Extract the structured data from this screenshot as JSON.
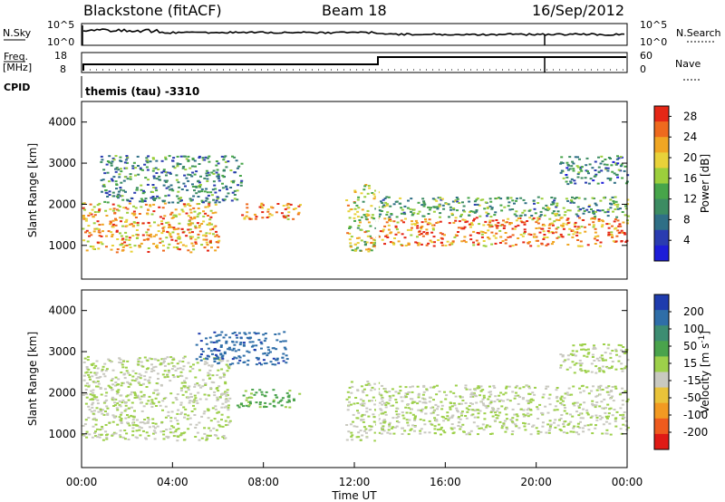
{
  "header": {
    "station": "Blackstone (fitACF)",
    "beam": "Beam 18",
    "date": "16/Sep/2012"
  },
  "noise_panel": {
    "left_label": "N.Sky",
    "right_label": "N.Search",
    "left_ticks": [
      "10^5",
      "10^0"
    ],
    "right_ticks": [
      "10^5",
      "10^0"
    ]
  },
  "freq_panel": {
    "left_label_1": "Freq.",
    "left_label_2": "[MHz]",
    "left_ticks": [
      "18",
      "8"
    ],
    "right_label": "Nave",
    "right_ticks": [
      "60",
      "0"
    ]
  },
  "cpid": {
    "label": "CPID",
    "text": "themis (tau) -3310"
  },
  "colors": {
    "power": [
      "#1d1dd8",
      "#2a3cb0",
      "#2f6f86",
      "#3c8c62",
      "#47a54a",
      "#9ccf3c",
      "#e8d23a",
      "#f0a623",
      "#ee6a1e",
      "#e52716"
    ],
    "velocity": [
      "#1f3cae",
      "#2f6ea8",
      "#3d8d72",
      "#4aa34c",
      "#9dd04a",
      "#c9c9c0",
      "#e9c33a",
      "#f29a22",
      "#ee5b1e",
      "#df1a15"
    ]
  },
  "chart_data": [
    {
      "type": "heatmap",
      "name": "power",
      "ylabel": "Slant Range [km]",
      "yticks": [
        "1000",
        "2000",
        "3000",
        "4000"
      ],
      "ylim": [
        180,
        4500
      ],
      "colorbar_label": "Power [dB]",
      "colorbar_ticks": [
        "4",
        "8",
        "12",
        "16",
        "20",
        "24",
        "28"
      ],
      "colorbar_range": [
        0,
        30
      ],
      "bands": [
        {
          "x0": 0.0,
          "x1": 6.0,
          "y0": 850,
          "y1": 2050,
          "v": 22
        },
        {
          "x0": 0.8,
          "x1": 7.0,
          "y0": 2050,
          "y1": 3200,
          "v": 10
        },
        {
          "x0": 7.0,
          "x1": 9.6,
          "y0": 1650,
          "y1": 2050,
          "v": 24
        },
        {
          "x0": 11.6,
          "x1": 13.0,
          "y0": 850,
          "y1": 2500,
          "v": 18
        },
        {
          "x0": 13.0,
          "x1": 24.0,
          "y0": 1000,
          "y1": 1700,
          "v": 24
        },
        {
          "x0": 13.0,
          "x1": 24.0,
          "y0": 1700,
          "y1": 2200,
          "v": 12
        },
        {
          "x0": 21.0,
          "x1": 24.0,
          "y0": 2500,
          "y1": 3200,
          "v": 9
        }
      ]
    },
    {
      "type": "heatmap",
      "name": "velocity",
      "xlabel": "Time UT",
      "xticks": [
        "00:00",
        "04:00",
        "08:00",
        "12:00",
        "16:00",
        "20:00",
        "00:00"
      ],
      "xlim": [
        0,
        24
      ],
      "ylabel": "Slant Range [km]",
      "yticks": [
        "1000",
        "2000",
        "3000",
        "4000"
      ],
      "ylim": [
        180,
        4500
      ],
      "colorbar_label": "Velocity [m s^-1]",
      "colorbar_ticks": [
        "200",
        "100",
        "50",
        "15",
        "-15",
        "-50",
        "-100",
        "-200"
      ],
      "colorbar_range": [
        -250,
        250
      ],
      "bands": [
        {
          "x0": 0.0,
          "x1": 6.5,
          "y0": 850,
          "y1": 2900,
          "v": 0
        },
        {
          "x0": 6.8,
          "x1": 9.6,
          "y0": 1650,
          "y1": 2100,
          "v": 60
        },
        {
          "x0": 5.0,
          "x1": 9.0,
          "y0": 2700,
          "y1": 3500,
          "v": 180
        },
        {
          "x0": 11.6,
          "x1": 13.0,
          "y0": 850,
          "y1": 2300,
          "v": 0
        },
        {
          "x0": 13.0,
          "x1": 24.0,
          "y0": 1000,
          "y1": 2200,
          "v": 0
        },
        {
          "x0": 21.0,
          "x1": 24.0,
          "y0": 2500,
          "y1": 3200,
          "v": 0
        }
      ]
    }
  ]
}
